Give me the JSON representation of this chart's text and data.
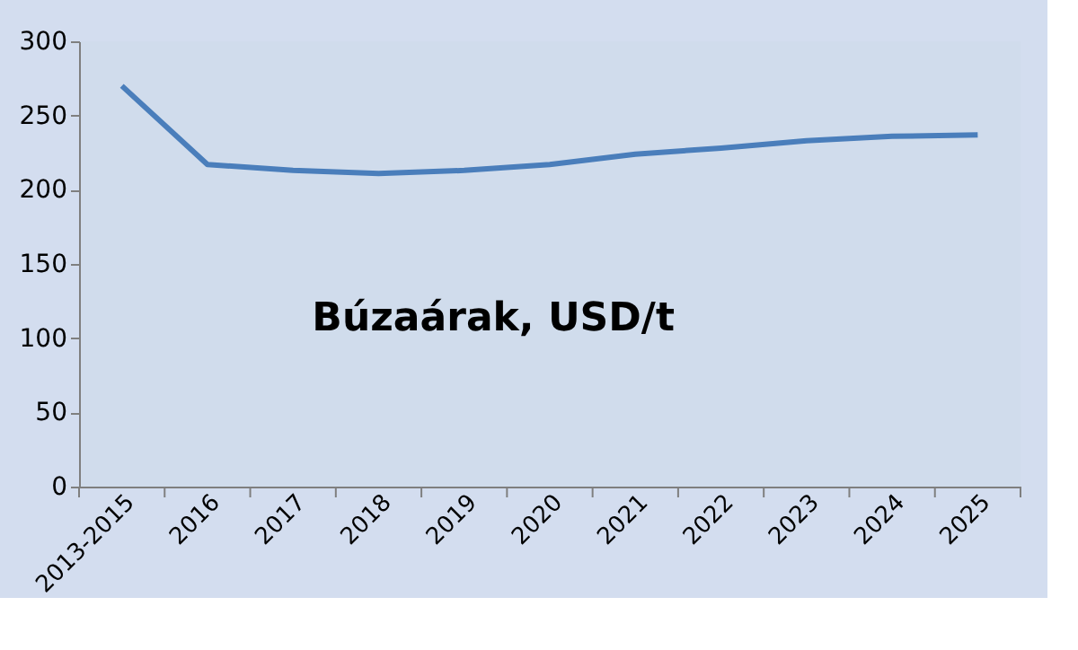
{
  "chart_data": {
    "type": "line",
    "title": "Búzaárak, USD/t",
    "categories": [
      "2013-2015",
      "2016",
      "2017",
      "2018",
      "2019",
      "2020",
      "2021",
      "2022",
      "2023",
      "2024",
      "2025"
    ],
    "series": [
      {
        "color": "#4a7ebb",
        "values": [
          270,
          217,
          213,
          211,
          213,
          217,
          224,
          228,
          233,
          236,
          237
        ]
      }
    ],
    "ylim": [
      0,
      300
    ],
    "yticks": [
      0,
      50,
      100,
      150,
      200,
      250,
      300
    ],
    "grid": false,
    "marker": "none",
    "line_style": "solid"
  }
}
